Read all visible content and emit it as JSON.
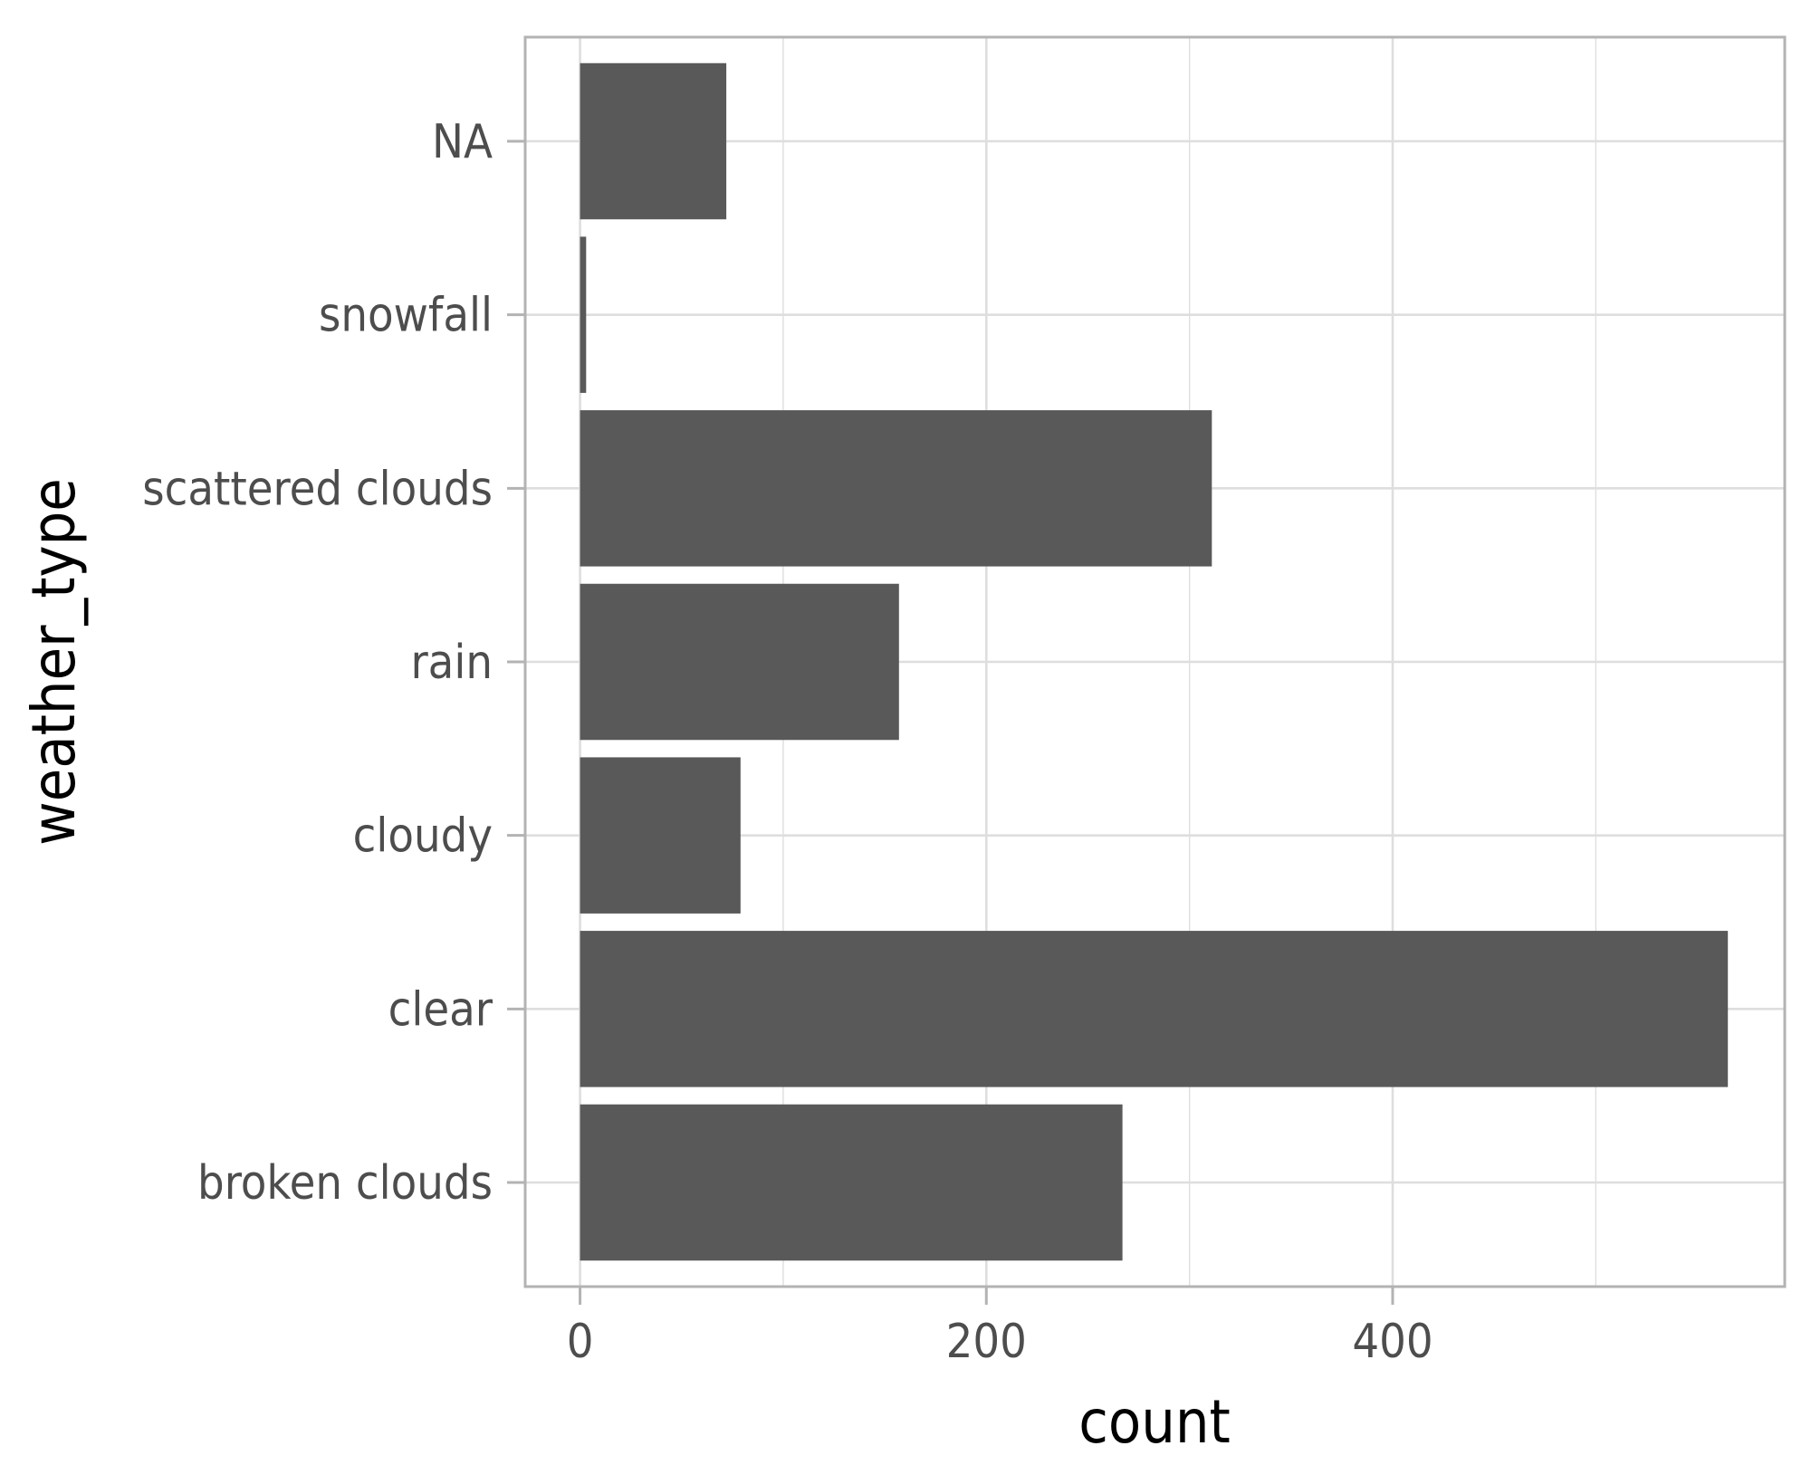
{
  "chart_data": {
    "type": "bar",
    "orientation": "horizontal",
    "categories": [
      "broken clouds",
      "clear",
      "cloudy",
      "rain",
      "scattered clouds",
      "snowfall",
      "NA"
    ],
    "values": [
      267,
      565,
      79,
      157,
      311,
      3,
      72
    ],
    "xlabel": "count",
    "ylabel": "weather_type",
    "x_ticks": [
      0,
      200,
      400
    ],
    "xlim": [
      -27,
      593
    ],
    "grid": true,
    "legend": "none",
    "colors": {
      "bar": "#595959",
      "grid": "#dedede",
      "panel_border": "#b3b3b3",
      "tick_mark": "#b3b3b3"
    }
  }
}
